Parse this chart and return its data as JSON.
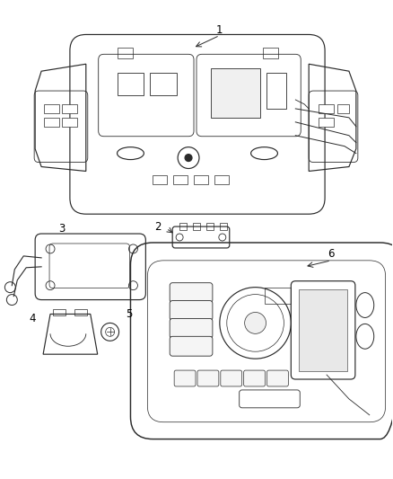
{
  "background_color": "#ffffff",
  "line_color": "#2a2a2a",
  "label_color": "#000000",
  "fig_width": 4.38,
  "fig_height": 5.33,
  "dpi": 100,
  "label_fontsize": 8.5,
  "lw": 0.85
}
